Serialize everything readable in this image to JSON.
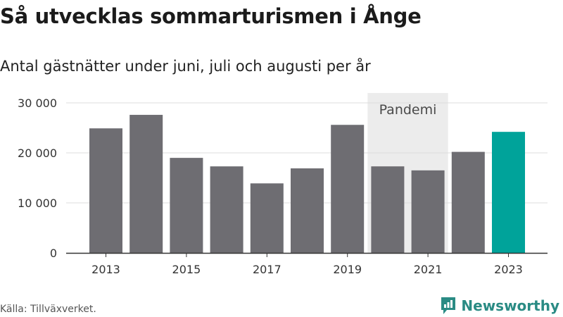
{
  "title": "Så utvecklas sommarturismen i Ånge",
  "subtitle": "Antal gästnätter under juni, juli och augusti per år",
  "source": "Källa: Tillväxverket.",
  "brand": {
    "name": "Newsworthy",
    "color": "#2a8b84",
    "icon": "newsworthy-logo-icon"
  },
  "colors": {
    "bar": "#6e6d72",
    "highlight": "#00a39a",
    "band": "#ececec",
    "grid": "#dddddd"
  },
  "chart_data": {
    "type": "bar",
    "title": "Så utvecklas sommarturismen i Ånge",
    "xlabel": "",
    "ylabel": "",
    "categories": [
      2013,
      2014,
      2015,
      2016,
      2017,
      2018,
      2019,
      2020,
      2021,
      2022,
      2023
    ],
    "values": [
      24900,
      27600,
      19000,
      17300,
      13900,
      16900,
      25600,
      17300,
      16500,
      20200,
      24200
    ],
    "highlight": [
      2023
    ],
    "ylim": [
      0,
      30000
    ],
    "yticks": [
      0,
      10000,
      20000,
      30000
    ],
    "ytick_labels": [
      "0",
      "10 000",
      "20 000",
      "30 000"
    ],
    "xticks": [
      2013,
      2015,
      2017,
      2019,
      2021,
      2023
    ],
    "grid": true,
    "annotation": {
      "label": "Pandemi",
      "from": 2020,
      "to": 2021
    }
  }
}
